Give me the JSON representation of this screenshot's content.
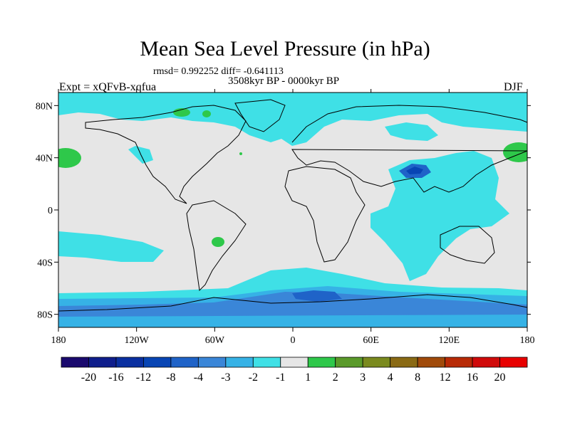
{
  "title": "Mean Sea Level Pressure (in hPa)",
  "stats": "rmsd= 0.992252  diff= -0.641113",
  "period": "3508kyr BP - 0000kyr BP",
  "expt": "Expt = xQFvB-xqfua",
  "season": "DJF",
  "map": {
    "lon_ticks": [
      "180",
      "120W",
      "60W",
      "0",
      "60E",
      "120E",
      "180"
    ],
    "lat_ticks": [
      "80N",
      "40N",
      "0",
      "40S",
      "80S"
    ],
    "lon_range": [
      -180,
      180
    ],
    "lat_range": [
      -90,
      90
    ]
  },
  "colorbar": {
    "labels": [
      "-20",
      "-16",
      "-12",
      "-8",
      "-4",
      "-3",
      "-2",
      "-1",
      "1",
      "2",
      "3",
      "4",
      "8",
      "12",
      "16",
      "20"
    ],
    "colors": [
      "#1a0a6e",
      "#0f1e8c",
      "#0a2fa0",
      "#0845b4",
      "#1f63c8",
      "#3a86d8",
      "#36b2e6",
      "#3fe0e6",
      "#e6e6e6",
      "#2ec84a",
      "#5a9a2a",
      "#7a8a1e",
      "#8a6a14",
      "#a04a0a",
      "#b82a06",
      "#d00a0a",
      "#e80000"
    ]
  }
}
